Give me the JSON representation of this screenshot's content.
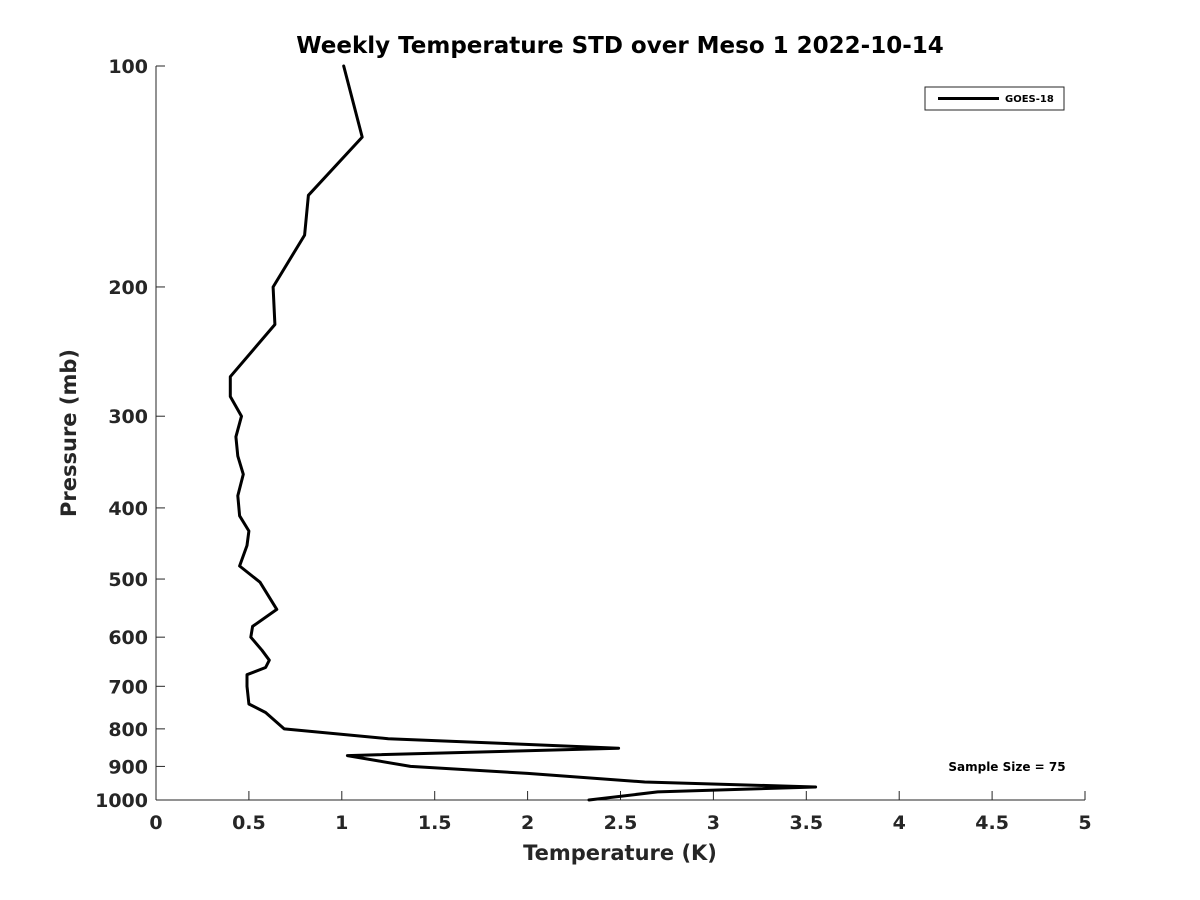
{
  "chart_data": {
    "type": "line",
    "title": "Weekly Temperature STD over Meso 1 2022-10-14",
    "xlabel": "Temperature (K)",
    "ylabel": "Pressure (mb)",
    "xlim": [
      0,
      5
    ],
    "ylim": [
      100,
      1000
    ],
    "y_scale": "log",
    "y_reversed": true,
    "grid": false,
    "legend_position": "top-right",
    "x_ticks": [
      0,
      0.5,
      1,
      1.5,
      2,
      2.5,
      3,
      3.5,
      4,
      4.5,
      5
    ],
    "x_tick_labels": [
      "0",
      "0.5",
      "1",
      "1.5",
      "2",
      "2.5",
      "3",
      "3.5",
      "4",
      "4.5",
      "5"
    ],
    "y_ticks": [
      100,
      200,
      300,
      400,
      500,
      600,
      700,
      800,
      900,
      1000
    ],
    "y_tick_labels": [
      "100",
      "200",
      "300",
      "400",
      "500",
      "600",
      "700",
      "800",
      "900",
      "1000"
    ],
    "series": [
      {
        "name": "GOES-18",
        "color": "#000000",
        "points": [
          {
            "x": 1.01,
            "y": 100
          },
          {
            "x": 1.11,
            "y": 125
          },
          {
            "x": 0.82,
            "y": 150
          },
          {
            "x": 0.8,
            "y": 170
          },
          {
            "x": 0.63,
            "y": 200
          },
          {
            "x": 0.64,
            "y": 225
          },
          {
            "x": 0.4,
            "y": 265
          },
          {
            "x": 0.4,
            "y": 282
          },
          {
            "x": 0.46,
            "y": 300
          },
          {
            "x": 0.43,
            "y": 320
          },
          {
            "x": 0.44,
            "y": 340
          },
          {
            "x": 0.47,
            "y": 360
          },
          {
            "x": 0.44,
            "y": 385
          },
          {
            "x": 0.45,
            "y": 410
          },
          {
            "x": 0.5,
            "y": 430
          },
          {
            "x": 0.49,
            "y": 450
          },
          {
            "x": 0.45,
            "y": 480
          },
          {
            "x": 0.56,
            "y": 505
          },
          {
            "x": 0.65,
            "y": 550
          },
          {
            "x": 0.52,
            "y": 580
          },
          {
            "x": 0.51,
            "y": 600
          },
          {
            "x": 0.57,
            "y": 625
          },
          {
            "x": 0.61,
            "y": 645
          },
          {
            "x": 0.59,
            "y": 660
          },
          {
            "x": 0.49,
            "y": 675
          },
          {
            "x": 0.49,
            "y": 700
          },
          {
            "x": 0.5,
            "y": 740
          },
          {
            "x": 0.59,
            "y": 760
          },
          {
            "x": 0.69,
            "y": 800
          },
          {
            "x": 1.25,
            "y": 825
          },
          {
            "x": 2.49,
            "y": 850
          },
          {
            "x": 1.03,
            "y": 870
          },
          {
            "x": 1.37,
            "y": 900
          },
          {
            "x": 2.0,
            "y": 920
          },
          {
            "x": 2.63,
            "y": 945
          },
          {
            "x": 3.55,
            "y": 960
          },
          {
            "x": 2.7,
            "y": 975
          },
          {
            "x": 2.33,
            "y": 1000
          }
        ]
      }
    ],
    "annotations": [
      {
        "text": "Sample Size = 75",
        "position": "bottom-right"
      }
    ]
  }
}
